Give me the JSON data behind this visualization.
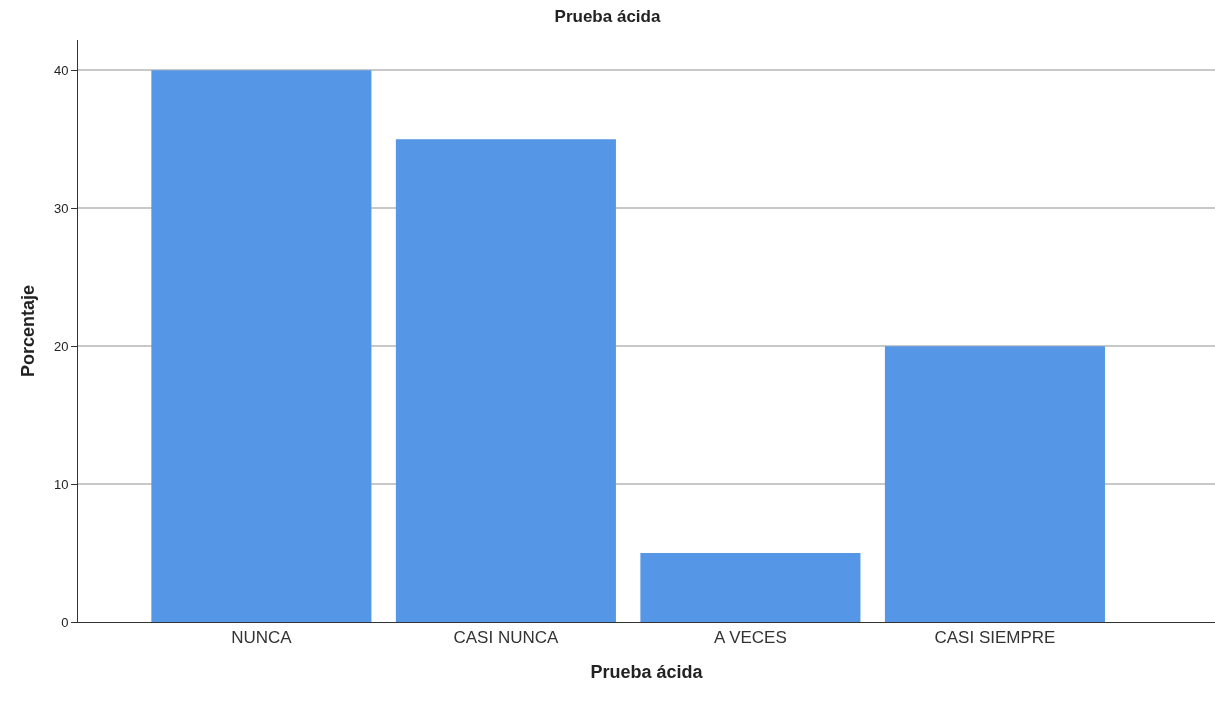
{
  "chart_data": {
    "type": "bar",
    "title": "Prueba ácida",
    "xlabel": "Prueba ácida",
    "ylabel": "Porcentaje",
    "categories": [
      "NUNCA",
      "CASI NUNCA",
      "A VECES",
      "CASI SIEMPRE"
    ],
    "values": [
      40,
      35,
      5,
      20
    ],
    "color": "#5596e6",
    "ylim": [
      0,
      42.2
    ],
    "yticks": [
      0,
      10,
      20,
      30,
      40
    ],
    "grid": "y"
  }
}
